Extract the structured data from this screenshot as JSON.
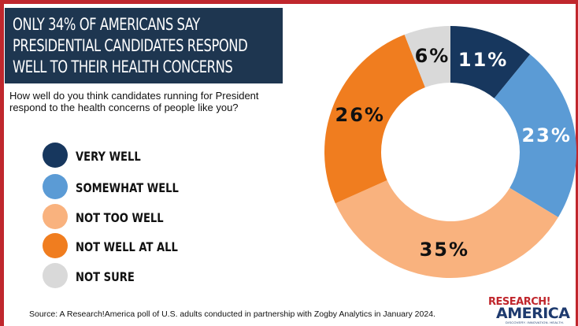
{
  "title": {
    "lines": [
      "ONLY 34% OF AMERICANS SAY",
      "PRESIDENTIAL CANDIDATES RESPOND",
      "WELL TO THEIR HEALTH CONCERNS"
    ]
  },
  "question": {
    "lines": [
      "How well do you think candidates running for President",
      "respond to the health concerns of people like you?"
    ]
  },
  "chart_data": {
    "type": "pie",
    "donut": true,
    "title": "ONLY 34% OF AMERICANS SAY PRESIDENTIAL CANDIDATES RESPOND WELL TO THEIR HEALTH CONCERNS",
    "start_angle_deg": 0,
    "direction": "clockwise",
    "legend_position": "left",
    "slices": [
      {
        "name": "VERY WELL",
        "value": 11,
        "label": "11%",
        "color": "#17375e",
        "label_color": "#ffffff"
      },
      {
        "name": "SOMEWHAT WELL",
        "value": 23,
        "label": "23%",
        "color": "#5b9bd5",
        "label_color": "#ffffff"
      },
      {
        "name": "NOT TOO WELL",
        "value": 35,
        "label": "35%",
        "color": "#f9b27e",
        "label_color": "#111111"
      },
      {
        "name": "NOT WELL AT ALL",
        "value": 26,
        "label": "26%",
        "color": "#f07d1f",
        "label_color": "#111111"
      },
      {
        "name": "NOT SURE",
        "value": 6,
        "label": "6%",
        "color": "#d9d9d9",
        "label_color": "#111111"
      }
    ]
  },
  "source": "Source:  A Research!America poll of U.S. adults conducted in partnership with Zogby Analytics in January 2024.",
  "logo": {
    "top": "RESEARCH!",
    "bottom": "AMERICA",
    "tagline": "DISCOVERY. INNOVATION. HEALTH."
  }
}
